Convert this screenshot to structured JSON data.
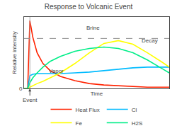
{
  "chart_data": {
    "type": "line",
    "title": "Response to Volcanic Event",
    "xlabel": "Time",
    "ylabel": "Relative intensity",
    "x": [
      0.0,
      0.01,
      0.025,
      0.04,
      0.06,
      0.09,
      0.13,
      0.18,
      0.25,
      0.35,
      0.45,
      0.55,
      0.65,
      0.75,
      0.85,
      0.95,
      1.0
    ],
    "series": [
      {
        "name": "Heat Flux",
        "color": "#ff2200",
        "values": [
          0.0,
          0.0,
          0.0,
          0.95,
          0.72,
          0.5,
          0.35,
          0.25,
          0.17,
          0.11,
          0.07,
          0.05,
          0.04,
          0.03,
          0.02,
          0.02,
          0.02
        ]
      },
      {
        "name": "Cl",
        "color": "#00bbff",
        "values": [
          0.0,
          0.0,
          0.0,
          0.18,
          0.2,
          0.21,
          0.21,
          0.21,
          0.21,
          0.22,
          0.23,
          0.25,
          0.27,
          0.29,
          0.3,
          0.3,
          0.3
        ]
      },
      {
        "name": "Fe",
        "color": "#ffff00",
        "values": [
          0.0,
          0.0,
          0.0,
          0.02,
          0.04,
          0.07,
          0.1,
          0.15,
          0.22,
          0.35,
          0.5,
          0.63,
          0.67,
          0.62,
          0.5,
          0.37,
          0.3
        ]
      },
      {
        "name": "H2S",
        "color": "#00ee88",
        "values": [
          0.0,
          0.0,
          0.0,
          0.08,
          0.15,
          0.22,
          0.3,
          0.38,
          0.45,
          0.52,
          0.56,
          0.58,
          0.56,
          0.5,
          0.4,
          0.28,
          0.22
        ]
      }
    ],
    "xlim": [
      0,
      1.0
    ],
    "xticks": [],
    "ylim": [
      0,
      1.0
    ],
    "yticks": [
      0
    ],
    "brine_line_y": 0.7,
    "event": {
      "x": 0.04,
      "text": "Event"
    },
    "annotations": [
      "Brine",
      "Decay",
      "Vapor"
    ],
    "tick_labels": "y",
    "grid": false,
    "legend": "bottom"
  }
}
